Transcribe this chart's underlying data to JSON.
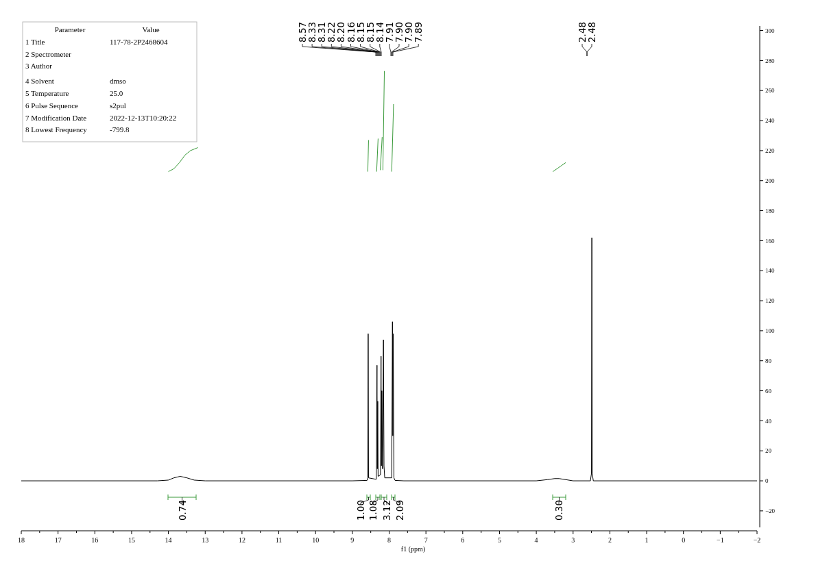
{
  "chart_data": {
    "type": "line",
    "xlabel": "f1 (ppm)",
    "xlim": [
      18,
      -2
    ],
    "xticks": [
      18,
      {
        "value": 17.5,
        "label": null
      },
      17,
      {
        "value": 16.5,
        "label": null
      },
      16,
      {
        "value": 15.5,
        "label": null
      },
      15,
      {
        "value": 14.5,
        "label": null
      },
      14,
      {
        "value": 13.5,
        "label": null
      },
      13,
      {
        "value": 12.5,
        "label": null
      },
      12,
      {
        "value": 11.5,
        "label": null
      },
      11,
      {
        "value": 10.5,
        "label": null
      },
      10,
      {
        "value": 9.5,
        "label": null
      },
      9,
      {
        "value": 8.5,
        "label": null
      },
      8,
      {
        "value": 7.5,
        "label": null
      },
      7,
      {
        "value": 6.5,
        "label": null
      },
      6,
      {
        "value": 5.5,
        "label": null
      },
      5,
      {
        "value": 4.5,
        "label": null
      },
      4,
      {
        "value": 3.5,
        "label": null
      },
      3,
      {
        "value": 2.5,
        "label": null
      },
      2,
      {
        "value": 1.5,
        "label": null
      },
      1,
      {
        "value": 0.5,
        "label": null
      },
      0,
      {
        "value": -0.5,
        "label": null
      },
      {
        "value": -1,
        "label": "−1"
      },
      {
        "value": -1.5,
        "label": null
      },
      {
        "value": -2,
        "label": "−2"
      }
    ],
    "ylim": [
      -31,
      303
    ],
    "yticks": [
      -20,
      0,
      20,
      40,
      60,
      80,
      100,
      120,
      140,
      160,
      180,
      200,
      220,
      240,
      260,
      280,
      300
    ],
    "grid": false,
    "marker": "none",
    "line_style": "solid",
    "series": [
      {
        "color": "#000000",
        "x": [
          18,
          14.3,
          14.0,
          13.85,
          13.68,
          13.5,
          13.3,
          13.0,
          9,
          8.6,
          8.58,
          8.57,
          8.56,
          8.35,
          8.33,
          8.32,
          8.31,
          8.3,
          8.235,
          8.22,
          8.21,
          8.2,
          8.18,
          8.155,
          8.14,
          8.12,
          7.93,
          7.91,
          7.9,
          7.89,
          7.87,
          7.84,
          7.6,
          4.0,
          3.7,
          3.5,
          3.38,
          3.2,
          3.0,
          2.53,
          2.5,
          2.49,
          2.48,
          2.45,
          -2
        ],
        "values": [
          0,
          0,
          0.5,
          2,
          3,
          2,
          0.5,
          0,
          0,
          0.3,
          2,
          98,
          2,
          1,
          77,
          8,
          53,
          3,
          4,
          83,
          10,
          60,
          8,
          94,
          10,
          2,
          2,
          106,
          30,
          98,
          2,
          0.3,
          0,
          0,
          0.8,
          1.5,
          1.5,
          0.8,
          0,
          0,
          5,
          162,
          5,
          0,
          0
        ]
      },
      {
        "color": "#3a9a3a",
        "x": [
          14.0,
          13.85,
          13.7,
          13.55,
          13.4,
          13.2
        ],
        "values": [
          206,
          208,
          212,
          217,
          220,
          222
        ]
      },
      {
        "color": "#3a9a3a",
        "x": [
          8.58,
          8.56
        ],
        "values": [
          206,
          227
        ]
      },
      {
        "color": "#3a9a3a",
        "x": [
          8.34,
          8.3
        ],
        "values": [
          206,
          228
        ]
      },
      {
        "color": "#3a9a3a",
        "x": [
          8.24,
          8.19
        ],
        "values": [
          207,
          229
        ]
      },
      {
        "color": "#3a9a3a",
        "x": [
          8.17,
          8.13
        ],
        "values": [
          207,
          273
        ]
      },
      {
        "color": "#3a9a3a",
        "x": [
          7.93,
          7.88
        ],
        "values": [
          206,
          251
        ]
      },
      {
        "color": "#3a9a3a",
        "x": [
          3.55,
          3.2
        ],
        "values": [
          206,
          212
        ]
      }
    ],
    "annotations": [
      "Parameter",
      "Value",
      "1 Title",
      "117-78-2P2468604",
      "2 Spectrometer",
      "3 Author",
      "4 Solvent",
      "dmso",
      "5 Temperature",
      "25.0",
      "6 Pulse Sequence",
      "s2pul",
      "7 Modification Date",
      "2022-12-13T10:20:22",
      "8 Lowest Frequency",
      "-799.8",
      "8.57",
      "8.33",
      "8.31",
      "8.22",
      "8.20",
      "8.16",
      "8.15",
      "8.15",
      "8.14",
      "7.91",
      "7.90",
      "7.90",
      "7.89",
      "2.48",
      "2.48",
      "0.74",
      "1.00",
      "1.08",
      "3.12",
      "2.09",
      "0.30"
    ]
  }
}
